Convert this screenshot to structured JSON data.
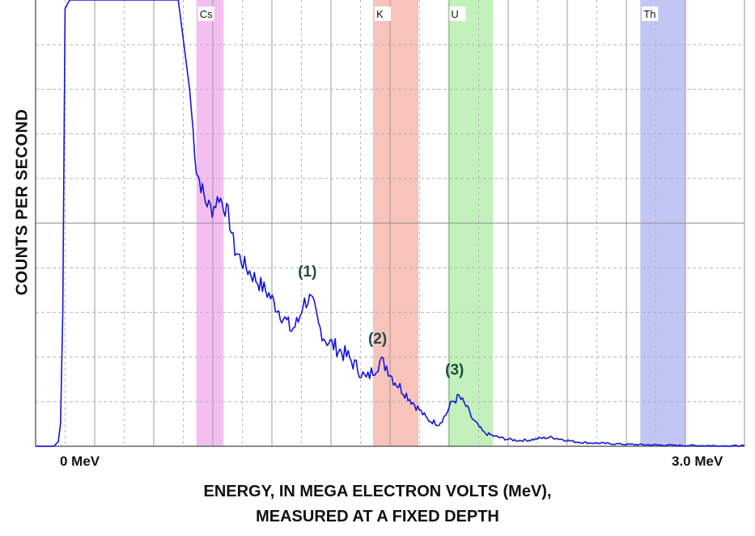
{
  "chart_data": {
    "type": "line",
    "xlabel_line1": "ENERGY, IN MEGA ELECTRON VOLTS (MeV),",
    "xlabel_line2": "MEASURED AT A FIXED DEPTH",
    "ylabel": "COUNTS PER SECOND",
    "x_tick_labels": [
      {
        "text": "0 MeV",
        "value": 0
      },
      {
        "text": "3.0 MeV",
        "value": 3.0
      }
    ],
    "xlim": [
      -0.13,
      3.0
    ],
    "ylim": [
      0,
      100
    ],
    "grid": true,
    "series_color": "#1515d6",
    "bands": [
      {
        "label": "Cs",
        "from": 0.58,
        "to": 0.7,
        "color": "#f2b3ee"
      },
      {
        "label": "K",
        "from": 1.36,
        "to": 1.56,
        "color": "#f6b8ae"
      },
      {
        "label": "U",
        "from": 1.69,
        "to": 1.89,
        "color": "#b9efb0"
      },
      {
        "label": "Th",
        "from": 2.54,
        "to": 2.74,
        "color": "#b7bcf2"
      }
    ],
    "peak_labels": [
      {
        "text": "(1)",
        "x": 1.07,
        "y": 38
      },
      {
        "text": "(2)",
        "x": 1.38,
        "y": 23
      },
      {
        "text": "(3)",
        "x": 1.72,
        "y": 16
      }
    ],
    "x": [
      -0.13,
      -0.05,
      -0.03,
      -0.02,
      -0.01,
      0.0,
      0.02,
      0.03,
      0.05,
      0.4,
      0.45,
      0.5,
      0.55,
      0.58,
      0.62,
      0.65,
      0.68,
      0.72,
      0.75,
      0.8,
      0.85,
      0.9,
      0.95,
      1.0,
      1.03,
      1.05,
      1.08,
      1.1,
      1.12,
      1.15,
      1.2,
      1.25,
      1.3,
      1.33,
      1.36,
      1.39,
      1.42,
      1.45,
      1.5,
      1.55,
      1.6,
      1.65,
      1.68,
      1.71,
      1.74,
      1.77,
      1.8,
      1.85,
      1.9,
      1.95,
      2.0,
      2.05,
      2.1,
      2.15,
      2.2,
      2.25,
      2.3,
      2.4,
      2.5,
      2.6,
      2.7,
      2.8,
      2.9,
      3.0
    ],
    "values": [
      0,
      0,
      1,
      5,
      30,
      98,
      100,
      100,
      100,
      100,
      100,
      100,
      80,
      62,
      55,
      53,
      56,
      52,
      44,
      40,
      37,
      34,
      30,
      26,
      28,
      32,
      33,
      31,
      27,
      24,
      22,
      20,
      17,
      15,
      17,
      19,
      18,
      15,
      12,
      9,
      6,
      5,
      7,
      10,
      11,
      9,
      6,
      3,
      2.2,
      1.6,
      1.3,
      1.4,
      1.8,
      2.0,
      1.5,
      1.0,
      0.8,
      0.6,
      0.4,
      0.3,
      0.2,
      0.15,
      0.1,
      0.1
    ]
  }
}
